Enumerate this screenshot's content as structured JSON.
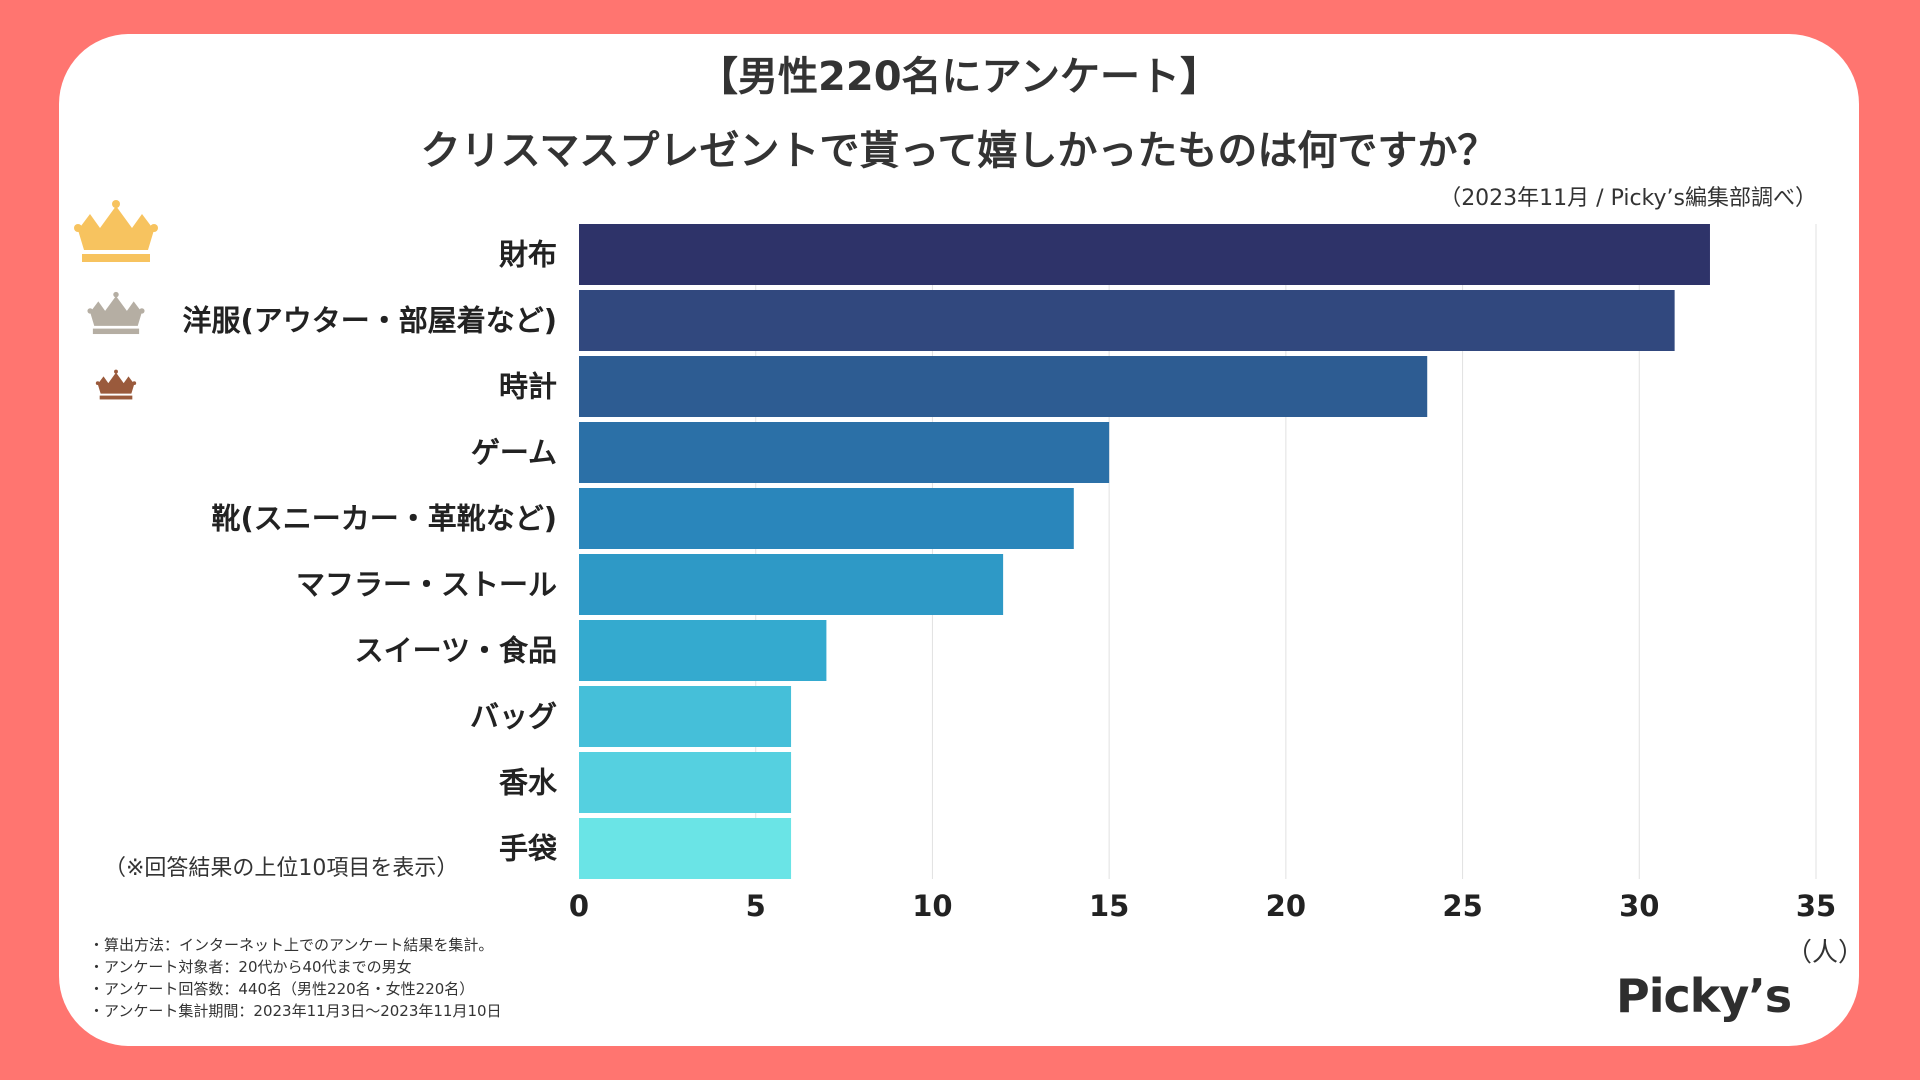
{
  "header": {
    "title_line1": "【男性220名にアンケート】",
    "title_line2": "クリスマスプレゼントで貰って嬉しかったものは何ですか？",
    "source": "（2023年11月 / Picky’s編集部調べ）"
  },
  "note": "（※回答結果の上位10項目を表示）",
  "footnotes": [
    "・算出方法：インターネット上でのアンケート結果を集計。",
    "・アンケート対象者：20代から40代までの男女",
    "・アンケート回答数：440名（男性220名・女性220名）",
    "・アンケート集計期間：2023年11月3日〜2023年11月10日"
  ],
  "logo": "Picky’s",
  "crowns": [
    {
      "rank": 1,
      "icon": "gold-crown-icon",
      "color": "#F7C35F"
    },
    {
      "rank": 2,
      "icon": "silver-crown-icon",
      "color": "#B5AEA3"
    },
    {
      "rank": 3,
      "icon": "bronze-crown-icon",
      "color": "#9A5A3C"
    }
  ],
  "chart_data": {
    "type": "bar",
    "orientation": "horizontal",
    "categories": [
      "財布",
      "洋服(アウター・部屋着など)",
      "時計",
      "ゲーム",
      "靴(スニーカー・革靴など)",
      "マフラー・ストール",
      "スイーツ・食品",
      "バッグ",
      "香水",
      "手袋"
    ],
    "values": [
      32,
      31,
      24,
      15,
      14,
      12,
      7,
      6,
      6,
      6
    ],
    "colors": [
      "#2E3369",
      "#31487E",
      "#2D5C92",
      "#2B70A7",
      "#2A86BB",
      "#2E99C6",
      "#34AACF",
      "#45BFD9",
      "#55D0E0",
      "#6AE4E6"
    ],
    "xlim": [
      0,
      35
    ],
    "xticks": [
      0,
      5,
      10,
      15,
      20,
      25,
      30,
      35
    ],
    "xunit": "（人）",
    "grid": true
  }
}
